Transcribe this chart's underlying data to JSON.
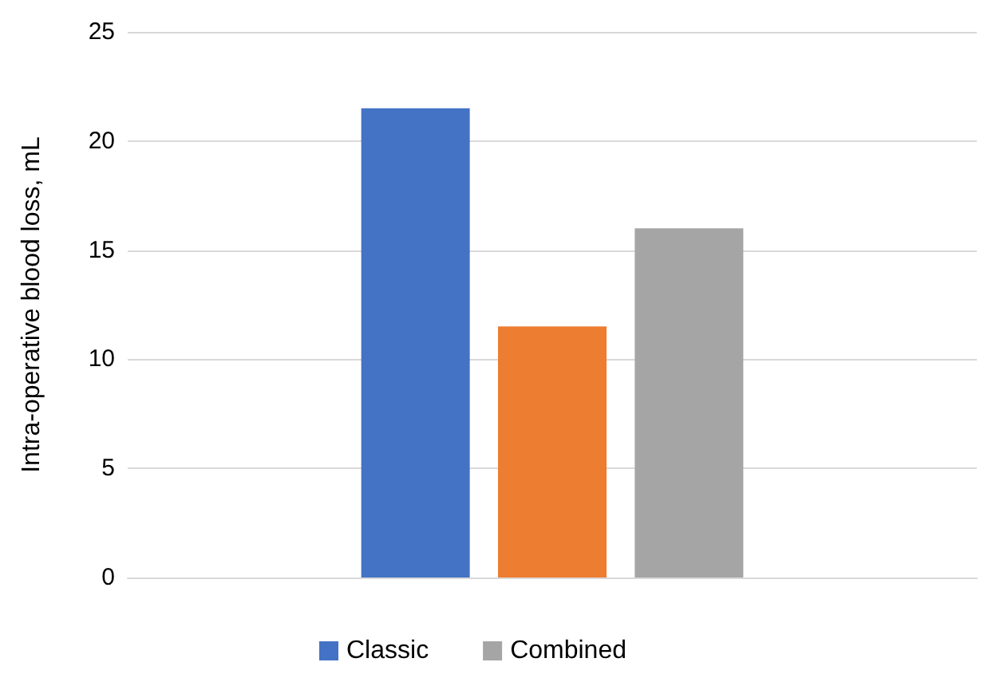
{
  "chart_data": {
    "type": "bar",
    "ylabel": "Intra-operative blood loss, mL",
    "categories": [
      null
    ],
    "series": [
      {
        "name": "Classic",
        "color": "#4472c4",
        "values": [
          21.5
        ]
      },
      {
        "color": "#ed7d31",
        "values": [
          11.5
        ]
      },
      {
        "name": "Combined",
        "color": "#a5a5a5",
        "values": [
          16
        ]
      }
    ],
    "ylim": [
      0,
      25
    ],
    "yticks": [
      0,
      5,
      10,
      15,
      20,
      25
    ],
    "grid": "y",
    "legend": "bottom"
  }
}
